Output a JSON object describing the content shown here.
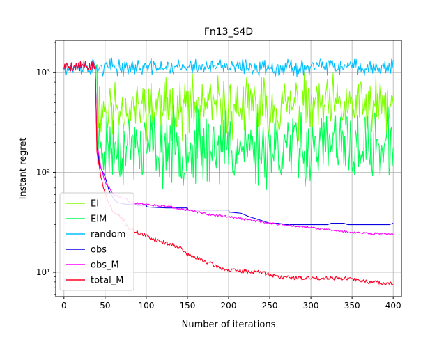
{
  "chart_data": {
    "type": "line",
    "title": "Fn13_S4D",
    "xlabel": "Number of iterations",
    "ylabel": "Instant regret",
    "xlim": [
      -10,
      410
    ],
    "ylim": [
      5.7,
      2100
    ],
    "yscale": "log",
    "grid": true,
    "legend_position": "lower-left",
    "xticks": [
      0,
      50,
      100,
      150,
      200,
      250,
      300,
      350,
      400
    ],
    "yticks": [
      {
        "value": 10,
        "label": "10¹"
      },
      {
        "value": 100,
        "label": "10²"
      },
      {
        "value": 1000,
        "label": "10³"
      }
    ],
    "series": [
      {
        "name": "EI",
        "color": "#7fff00",
        "kind": "noisy",
        "shared_until": 40,
        "x_end": 400,
        "post_mean": 450,
        "post_spread": 0.36,
        "seed": 11
      },
      {
        "name": "EIM",
        "color": "#00ff55",
        "kind": "noisy",
        "shared_until": 40,
        "x_end": 400,
        "post_mean": 180,
        "post_spread": 0.45,
        "seed": 23
      },
      {
        "name": "random",
        "color": "#00bfff",
        "kind": "noisy",
        "shared_until": 0,
        "x_end": 400,
        "post_mean": 1130,
        "post_spread": 0.1,
        "seed": 37
      },
      {
        "name": "obs",
        "color": "#0a00e0",
        "kind": "path",
        "x_end": 400,
        "points": [
          [
            0,
            1100
          ],
          [
            38,
            1200
          ],
          [
            40,
            200
          ],
          [
            43,
            120
          ],
          [
            50,
            90
          ],
          [
            55,
            65
          ],
          [
            60,
            55
          ],
          [
            65,
            50
          ],
          [
            75,
            48
          ],
          [
            90,
            47
          ],
          [
            100,
            47
          ],
          [
            101,
            45
          ],
          [
            125,
            44
          ],
          [
            150,
            44
          ],
          [
            151,
            42
          ],
          [
            200,
            42
          ],
          [
            201,
            40
          ],
          [
            215,
            39
          ],
          [
            225,
            36
          ],
          [
            230,
            35
          ],
          [
            240,
            33
          ],
          [
            250,
            31
          ],
          [
            260,
            31
          ],
          [
            270,
            30
          ],
          [
            300,
            30
          ],
          [
            320,
            30
          ],
          [
            325,
            31
          ],
          [
            340,
            31
          ],
          [
            345,
            30
          ],
          [
            380,
            30
          ],
          [
            395,
            30
          ],
          [
            400,
            31
          ]
        ]
      },
      {
        "name": "obs_M",
        "color": "#ff00ff",
        "kind": "path",
        "x_end": 400,
        "jitter": 0.02,
        "seed": 51,
        "points": [
          [
            0,
            1100
          ],
          [
            38,
            1200
          ],
          [
            40,
            200
          ],
          [
            45,
            110
          ],
          [
            50,
            80
          ],
          [
            55,
            70
          ],
          [
            60,
            60
          ],
          [
            70,
            55
          ],
          [
            75,
            55
          ],
          [
            80,
            50
          ],
          [
            100,
            48
          ],
          [
            130,
            45
          ],
          [
            150,
            42
          ],
          [
            175,
            38
          ],
          [
            200,
            36
          ],
          [
            250,
            31
          ],
          [
            300,
            28
          ],
          [
            350,
            25
          ],
          [
            400,
            24
          ]
        ]
      },
      {
        "name": "total_M",
        "color": "#ff0022",
        "kind": "path",
        "x_end": 400,
        "jitter": 0.04,
        "seed": 71,
        "points": [
          [
            0,
            1100
          ],
          [
            38,
            1200
          ],
          [
            40,
            160
          ],
          [
            45,
            90
          ],
          [
            50,
            60
          ],
          [
            55,
            48
          ],
          [
            60,
            40
          ],
          [
            70,
            35
          ],
          [
            80,
            27
          ],
          [
            90,
            25
          ],
          [
            100,
            23
          ],
          [
            120,
            20
          ],
          [
            140,
            18
          ],
          [
            150,
            15
          ],
          [
            160,
            14
          ],
          [
            170,
            13
          ],
          [
            180,
            12
          ],
          [
            190,
            11
          ],
          [
            200,
            10.5
          ],
          [
            220,
            10.2
          ],
          [
            240,
            10
          ],
          [
            250,
            9.5
          ],
          [
            260,
            9
          ],
          [
            280,
            8.8
          ],
          [
            300,
            8.7
          ],
          [
            320,
            8.8
          ],
          [
            340,
            8.7
          ],
          [
            350,
            8.5
          ],
          [
            370,
            8
          ],
          [
            390,
            7.8
          ],
          [
            400,
            7.6
          ]
        ]
      }
    ]
  }
}
